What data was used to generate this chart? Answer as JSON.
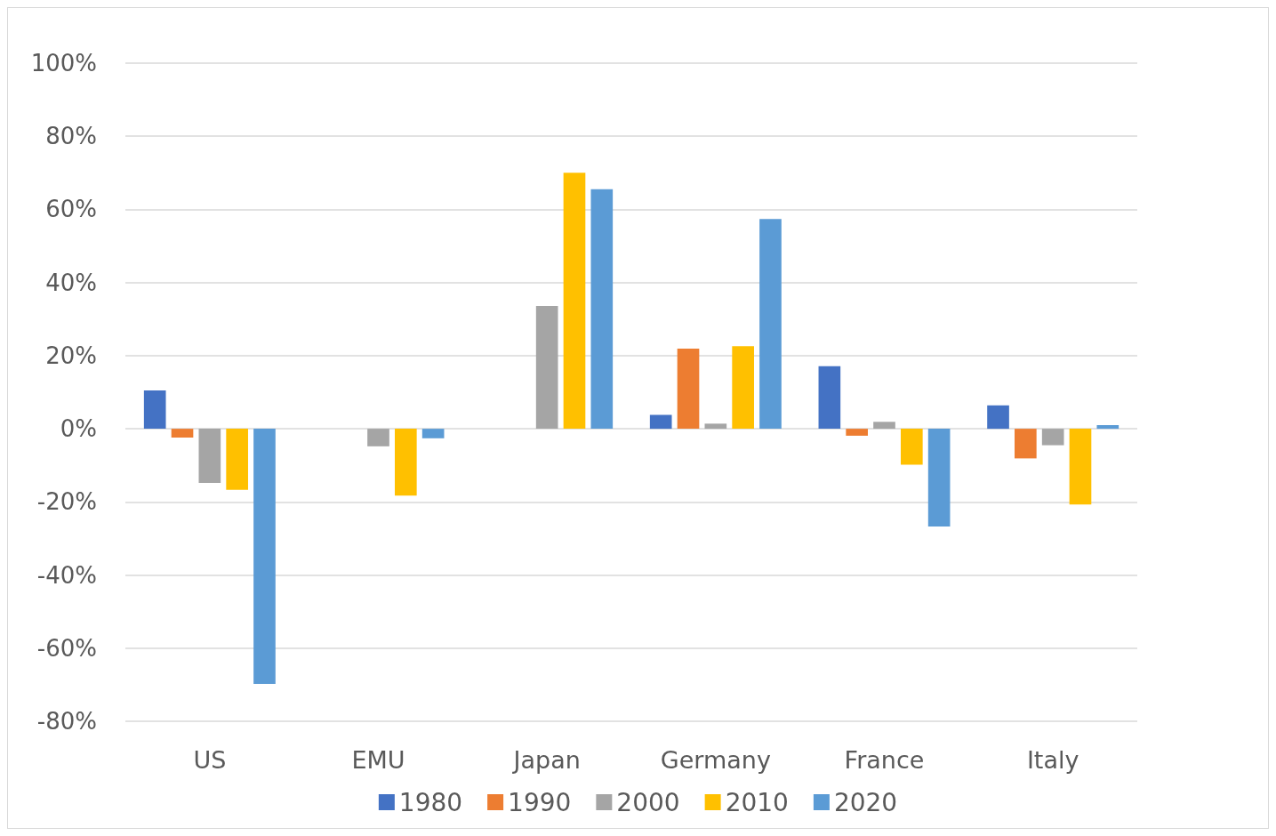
{
  "chart_data": {
    "type": "bar",
    "categories": [
      "US",
      "EMU",
      "Japan",
      "Germany",
      "France",
      "Italy"
    ],
    "series": [
      {
        "name": "1980",
        "color": "#4472c4",
        "values": [
          10.5,
          null,
          null,
          3.8,
          17.1,
          6.4
        ]
      },
      {
        "name": "1990",
        "color": "#ed7d31",
        "values": [
          -2.4,
          null,
          null,
          21.9,
          -1.9,
          -8.1
        ]
      },
      {
        "name": "2000",
        "color": "#a5a5a5",
        "values": [
          -14.8,
          -4.8,
          33.6,
          1.4,
          1.9,
          -4.5
        ]
      },
      {
        "name": "2010",
        "color": "#ffc000",
        "values": [
          -16.7,
          -18.3,
          70,
          22.6,
          -9.8,
          -20.7
        ]
      },
      {
        "name": "2020",
        "color": "#5b9bd5",
        "values": [
          -69.8,
          -2.6,
          65.5,
          57.4,
          -26.7,
          1.0
        ]
      }
    ],
    "ylim": [
      -80,
      100
    ],
    "yticks": [
      {
        "value": -80,
        "label": "-80%"
      },
      {
        "value": -60,
        "label": "-60%"
      },
      {
        "value": -40,
        "label": "-40%"
      },
      {
        "value": -20,
        "label": "-20%"
      },
      {
        "value": 0,
        "label": "0%"
      },
      {
        "value": 20,
        "label": "20%"
      },
      {
        "value": 40,
        "label": "40%"
      },
      {
        "value": 60,
        "label": "60%"
      },
      {
        "value": 80,
        "label": "80%"
      },
      {
        "value": 100,
        "label": "100%"
      }
    ],
    "grid": true,
    "legend": "bottom"
  }
}
